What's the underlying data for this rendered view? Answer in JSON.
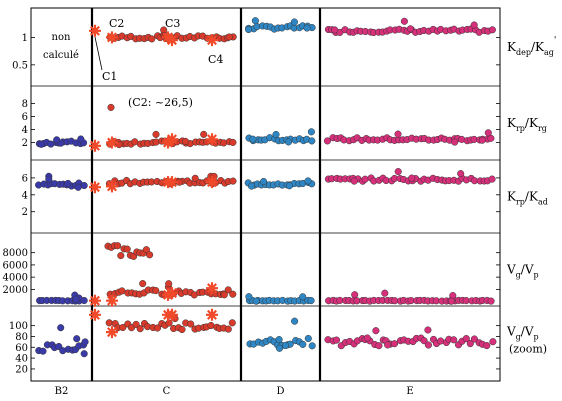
{
  "chart_data": {
    "type": "scatter",
    "sections": [
      {
        "id": "B2",
        "label": "B2"
      },
      {
        "id": "C",
        "label": "C"
      },
      {
        "id": "D",
        "label": "D"
      },
      {
        "id": "E",
        "label": "E"
      }
    ],
    "colors": {
      "B2": "#3a3aa8",
      "C": "#d83a2c",
      "D": "#2f86c4",
      "E": "#d6307a",
      "star": "#f04a2a"
    },
    "panels": [
      {
        "id": "p1",
        "label_main": "K",
        "label_sub1": "dep",
        "label_mid": "/K",
        "label_sub2": "ag",
        "label_sup": "'",
        "yticks": [
          "1",
          "0.5"
        ],
        "ylim": [
          0.2,
          1.45
        ],
        "levels": {
          "C": 1.0,
          "D": 1.18,
          "E": 1.12
        },
        "note_B2": [
          "non",
          "calculé"
        ],
        "stars": [
          1.12,
          1.0,
          1.0,
          0.95,
          0.95
        ],
        "star_labels": [
          "C1",
          "C2",
          "C3",
          "C4"
        ]
      },
      {
        "id": "p2",
        "label_main": "K",
        "label_sub1": "rp",
        "label_mid": "/K",
        "label_sub2": "rg",
        "yticks": [
          "8",
          "6",
          "4",
          "2"
        ],
        "ylim": [
          0,
          10
        ],
        "levels": {
          "B2": 2.0,
          "C": 2.0,
          "D": 2.5,
          "E": 2.5
        },
        "stars": [
          1.5,
          2.0,
          2.0,
          2.5,
          2.5
        ],
        "annotation": "(C2: ~26,5)"
      },
      {
        "id": "p3",
        "label_main": "K",
        "label_sub1": "rp",
        "label_mid": "/K",
        "label_sub2": "ad",
        "yticks": [
          "6",
          "4",
          "2"
        ],
        "ylim": [
          0,
          7.6
        ],
        "levels": {
          "B2": 5.2,
          "C": 5.5,
          "D": 5.3,
          "E": 5.8
        },
        "stars": [
          4.9,
          5.0,
          5.5,
          5.5,
          5.5
        ]
      },
      {
        "id": "p4",
        "label_main": "V",
        "label_sub1": "g",
        "label_mid": "/V",
        "label_sub2": "p",
        "yticks": [
          "8000",
          "6000",
          "4000",
          "2000"
        ],
        "ylim": [
          0,
          10500
        ],
        "levels": {
          "B2": 150,
          "C": 1500,
          "D": 150,
          "E": 150
        },
        "stars": [
          150,
          150,
          1100,
          1400,
          2200
        ]
      },
      {
        "id": "p5",
        "label_main": "V",
        "label_sub1": "g",
        "label_mid": "/V",
        "label_sub2": "p",
        "label_extra": "(zoom)",
        "yticks": [
          "100",
          "80",
          "60",
          "40",
          "20"
        ],
        "ylim": [
          6,
          128
        ],
        "levels": {
          "B2": 60,
          "C": 100,
          "D": 70,
          "E": 70
        },
        "stars": [
          120,
          88,
          120,
          120,
          120
        ]
      }
    ]
  }
}
